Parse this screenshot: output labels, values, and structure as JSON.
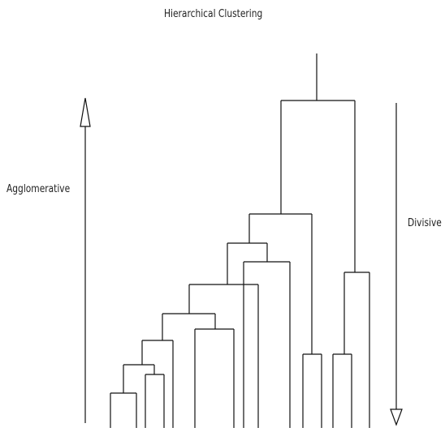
{
  "diagram": {
    "title": "Hierarchical Clustering",
    "left_arrow_label": "Agglomerative",
    "right_arrow_label": "Divisive",
    "line_color": "#111111",
    "arrow_fill": "#ffffff"
  }
}
